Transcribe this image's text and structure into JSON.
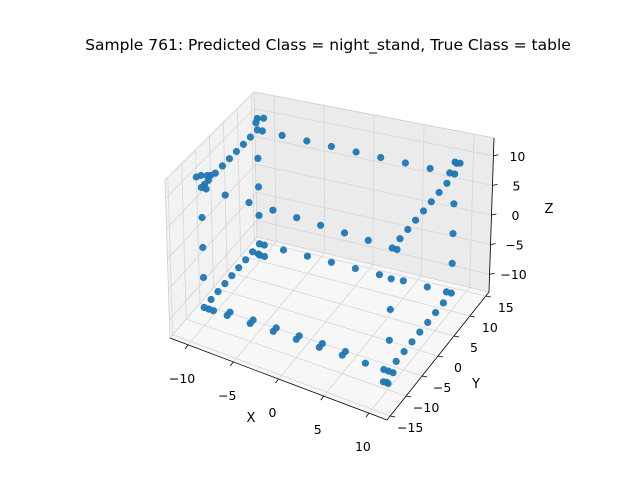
{
  "chart_data": {
    "type": "scatter",
    "projection": "3d",
    "title": "Sample 761: Predicted Class = night_stand, True Class = table",
    "xlabel": "X",
    "ylabel": "Y",
    "zlabel": "Z",
    "xlim": [
      -12,
      12
    ],
    "ylim": [
      -16,
      16
    ],
    "zlim": [
      -13,
      13
    ],
    "xticks": [
      -10,
      -5,
      0,
      5,
      10
    ],
    "yticks": [
      -15,
      -10,
      -5,
      0,
      5,
      10,
      15
    ],
    "zticks": [
      -10,
      -5,
      0,
      5,
      10
    ],
    "xtick_labels": [
      "−10",
      "−5",
      "0",
      "5",
      "10"
    ],
    "ytick_labels": [
      "−15",
      "−10",
      "−5",
      "0",
      "5",
      "10",
      "15"
    ],
    "ztick_labels": [
      "−10",
      "−5",
      "0",
      "5",
      "10"
    ],
    "grid": true,
    "color": "#1f77b4",
    "series": [
      {
        "points": [
          [
            -10,
            -10,
            -10
          ],
          [
            -9.5,
            -10,
            -10
          ],
          [
            -9,
            -10,
            -10
          ],
          [
            10,
            -10,
            -10
          ],
          [
            10.5,
            -10,
            -10
          ],
          [
            9.5,
            -10,
            -10
          ],
          [
            -10,
            10,
            -10
          ],
          [
            -9.5,
            10,
            -10
          ],
          [
            10,
            10,
            -10
          ],
          [
            9.5,
            10,
            -10
          ],
          [
            -10,
            -10,
            10
          ],
          [
            -9.5,
            -10,
            10
          ],
          [
            10,
            -10,
            10
          ],
          [
            10.5,
            -10,
            10
          ],
          [
            -10,
            10,
            10
          ],
          [
            -9.5,
            10,
            10
          ],
          [
            10,
            10,
            10
          ],
          [
            9.5,
            10,
            10
          ],
          [
            -10,
            -10,
            0
          ],
          [
            10,
            -10,
            0
          ],
          [
            -10,
            10,
            0
          ],
          [
            10,
            10,
            0
          ],
          [
            -10,
            -10,
            5
          ],
          [
            10,
            -10,
            5
          ],
          [
            -10,
            10,
            5
          ],
          [
            10,
            10,
            5
          ],
          [
            -10,
            -10,
            -5
          ],
          [
            10,
            -10,
            -5
          ],
          [
            -10,
            10,
            -5
          ],
          [
            10,
            10,
            -5
          ],
          [
            -7.5,
            -10,
            -10
          ],
          [
            -5,
            -10,
            -10
          ],
          [
            -2.5,
            -10,
            -10
          ],
          [
            0,
            -10,
            -10
          ],
          [
            2.5,
            -10,
            -10
          ],
          [
            5,
            -10,
            -10
          ],
          [
            7.5,
            -10,
            -10
          ],
          [
            -7.5,
            -9,
            -10
          ],
          [
            -5,
            -9,
            -10
          ],
          [
            -2.5,
            -9,
            -10
          ],
          [
            0,
            -9,
            -10
          ],
          [
            2.5,
            -9,
            -10
          ],
          [
            5,
            -9,
            -10
          ],
          [
            -7.5,
            10,
            -10
          ],
          [
            -5,
            10,
            -10
          ],
          [
            -2.5,
            10,
            -10
          ],
          [
            0,
            10,
            -10
          ],
          [
            2.5,
            10,
            -10
          ],
          [
            5,
            10,
            -10
          ],
          [
            7.5,
            10,
            -10
          ],
          [
            -7.5,
            -10,
            10
          ],
          [
            -5,
            -10,
            10
          ],
          [
            -2.5,
            -10,
            10
          ],
          [
            0,
            -10,
            10
          ],
          [
            2.5,
            -10,
            10
          ],
          [
            5,
            -10,
            10
          ],
          [
            7.5,
            -10,
            10
          ],
          [
            -7.5,
            10,
            10
          ],
          [
            -5,
            10,
            10
          ],
          [
            -2.5,
            10,
            10
          ],
          [
            0,
            10,
            10
          ],
          [
            2.5,
            10,
            10
          ],
          [
            5,
            10,
            10
          ],
          [
            7.5,
            10,
            10
          ],
          [
            -10,
            -7.5,
            -10
          ],
          [
            -10,
            -5,
            -10
          ],
          [
            -10,
            -2.5,
            -10
          ],
          [
            -10,
            0,
            -10
          ],
          [
            -10,
            2.5,
            -10
          ],
          [
            -10,
            5,
            -10
          ],
          [
            -10,
            7.5,
            -10
          ],
          [
            10,
            -7.5,
            -10
          ],
          [
            10,
            -5,
            -10
          ],
          [
            10,
            -2.5,
            -10
          ],
          [
            10,
            0,
            -10
          ],
          [
            10,
            2.5,
            -10
          ],
          [
            10,
            5,
            -10
          ],
          [
            10,
            7.5,
            -10
          ],
          [
            -10,
            -7.5,
            10
          ],
          [
            -10,
            -5,
            10
          ],
          [
            -10,
            -2.5,
            10
          ],
          [
            -10,
            0,
            10
          ],
          [
            -10,
            2.5,
            10
          ],
          [
            -10,
            5,
            10
          ],
          [
            -10,
            7.5,
            10
          ],
          [
            10,
            -7.5,
            10
          ],
          [
            10,
            -5,
            10
          ],
          [
            10,
            -2.5,
            10
          ],
          [
            10,
            0,
            10
          ],
          [
            10,
            2.5,
            10
          ],
          [
            10,
            5,
            10
          ],
          [
            10,
            7.5,
            10
          ],
          [
            -10,
            -10,
            12
          ],
          [
            -9.5,
            -9.5,
            12
          ],
          [
            -9,
            -10,
            12.5
          ],
          [
            -10.5,
            -10,
            11.5
          ],
          [
            -9.5,
            -10.5,
            11
          ],
          [
            -10,
            10,
            12
          ],
          [
            -9.5,
            10.5,
            12
          ],
          [
            -10,
            9.5,
            11.5
          ],
          [
            -10,
            10,
            -12
          ],
          [
            -9.5,
            10,
            -12
          ],
          [
            -10,
            9.5,
            -11.5
          ],
          [
            10,
            -10,
            -12
          ],
          [
            10,
            -10.5,
            -11.5
          ],
          [
            9.5,
            -10,
            -12
          ],
          [
            10,
            10,
            12
          ],
          [
            10.5,
            10,
            12
          ],
          [
            10,
            10.5,
            11.5
          ]
        ]
      }
    ]
  }
}
